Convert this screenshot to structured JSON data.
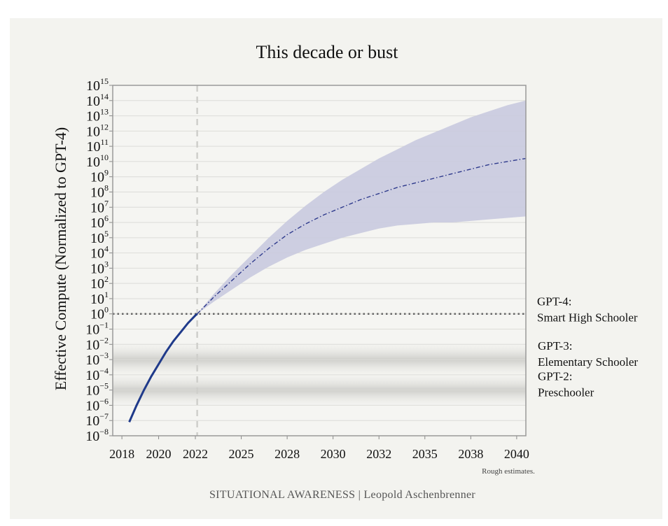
{
  "chart_data": {
    "type": "line",
    "title": "This decade or bust",
    "ylabel": "Effective Compute (Normalized to GPT-4)",
    "xlabel": "",
    "y_scale": "log10",
    "ylim_exponent": [
      -8,
      15
    ],
    "y_tick_exponents": [
      -8,
      -7,
      -6,
      -5,
      -4,
      -3,
      -2,
      -1,
      0,
      1,
      2,
      3,
      4,
      5,
      6,
      7,
      8,
      9,
      10,
      11,
      12,
      13,
      14,
      15
    ],
    "xlim": [
      2017.5,
      2040
    ],
    "x_ticks": [
      {
        "value": 2018,
        "label": "2018"
      },
      {
        "value": 2020,
        "label": "2020"
      },
      {
        "value": 2022,
        "label": "2022"
      },
      {
        "value": 2024.5,
        "label": "2025"
      },
      {
        "value": 2027,
        "label": "2028"
      },
      {
        "value": 2029.5,
        "label": "2030"
      },
      {
        "value": 2032,
        "label": "2032"
      },
      {
        "value": 2034.5,
        "label": "2035"
      },
      {
        "value": 2037,
        "label": "2038"
      },
      {
        "value": 2039.5,
        "label": "2040"
      }
    ],
    "grid": true,
    "series": [
      {
        "style": "solid",
        "color": "#1f3a8a",
        "points": [
          [
            2018.4,
            -7.1
          ],
          [
            2018.8,
            -6.0
          ],
          [
            2019.2,
            -5.0
          ],
          [
            2019.6,
            -4.1
          ],
          [
            2020.0,
            -3.3
          ],
          [
            2020.4,
            -2.5
          ],
          [
            2020.8,
            -1.8
          ],
          [
            2021.2,
            -1.2
          ],
          [
            2021.6,
            -0.6
          ],
          [
            2022.0,
            -0.1
          ],
          [
            2022.1,
            0.0
          ]
        ]
      },
      {
        "style": "dashdot",
        "color": "#2e3a8c",
        "points": [
          [
            2022.1,
            0.0
          ],
          [
            2023.0,
            1.1
          ],
          [
            2024.0,
            2.2
          ],
          [
            2025.0,
            3.3
          ],
          [
            2026.0,
            4.3
          ],
          [
            2027.0,
            5.2
          ],
          [
            2028.0,
            5.9
          ],
          [
            2029.0,
            6.5
          ],
          [
            2030.0,
            7.0
          ],
          [
            2031.0,
            7.5
          ],
          [
            2032.0,
            7.9
          ],
          [
            2033.0,
            8.3
          ],
          [
            2034.0,
            8.6
          ],
          [
            2035.0,
            8.9
          ],
          [
            2036.0,
            9.2
          ],
          [
            2037.0,
            9.5
          ],
          [
            2038.0,
            9.8
          ],
          [
            2039.0,
            10.0
          ],
          [
            2040.0,
            10.2
          ]
        ]
      }
    ],
    "uncertainty_band": {
      "color": "#c9cadf",
      "upper": [
        [
          2022.1,
          0.0
        ],
        [
          2023.0,
          1.3
        ],
        [
          2024.0,
          2.6
        ],
        [
          2025.0,
          3.8
        ],
        [
          2026.0,
          5.0
        ],
        [
          2027.0,
          6.1
        ],
        [
          2028.0,
          7.1
        ],
        [
          2029.0,
          8.0
        ],
        [
          2030.0,
          8.8
        ],
        [
          2031.0,
          9.5
        ],
        [
          2032.0,
          10.2
        ],
        [
          2033.0,
          10.8
        ],
        [
          2034.0,
          11.4
        ],
        [
          2035.0,
          11.9
        ],
        [
          2036.0,
          12.4
        ],
        [
          2037.0,
          12.9
        ],
        [
          2038.0,
          13.3
        ],
        [
          2039.0,
          13.7
        ],
        [
          2040.0,
          14.0
        ]
      ],
      "lower": [
        [
          2022.1,
          0.0
        ],
        [
          2023.0,
          0.8
        ],
        [
          2024.0,
          1.6
        ],
        [
          2025.0,
          2.4
        ],
        [
          2026.0,
          3.1
        ],
        [
          2027.0,
          3.7
        ],
        [
          2028.0,
          4.2
        ],
        [
          2029.0,
          4.6
        ],
        [
          2030.0,
          5.0
        ],
        [
          2031.0,
          5.3
        ],
        [
          2032.0,
          5.6
        ],
        [
          2033.0,
          5.8
        ],
        [
          2034.0,
          5.9
        ],
        [
          2035.0,
          6.0
        ],
        [
          2036.0,
          6.0
        ],
        [
          2037.0,
          6.1
        ],
        [
          2038.0,
          6.2
        ],
        [
          2039.0,
          6.3
        ],
        [
          2040.0,
          6.4
        ]
      ]
    },
    "reference_line": {
      "y_exponent": 0,
      "style": "dotted"
    },
    "vertical_line": {
      "x": 2022.1,
      "style": "dashed"
    },
    "shaded_bands": [
      {
        "y_exponent_center": -3,
        "label_line1": "GPT-3:",
        "label_line2": "Elementary Schooler"
      },
      {
        "y_exponent_center": -5,
        "label_line1": "GPT-2:",
        "label_line2": "Preschooler"
      }
    ],
    "annotations": [
      {
        "y_exponent": 0,
        "label_line1": "GPT-4:",
        "label_line2": "Smart High Schooler"
      }
    ],
    "note": "Rough estimates."
  },
  "footer": "SITUATIONAL AWARENESS | Leopold Aschenbrenner"
}
